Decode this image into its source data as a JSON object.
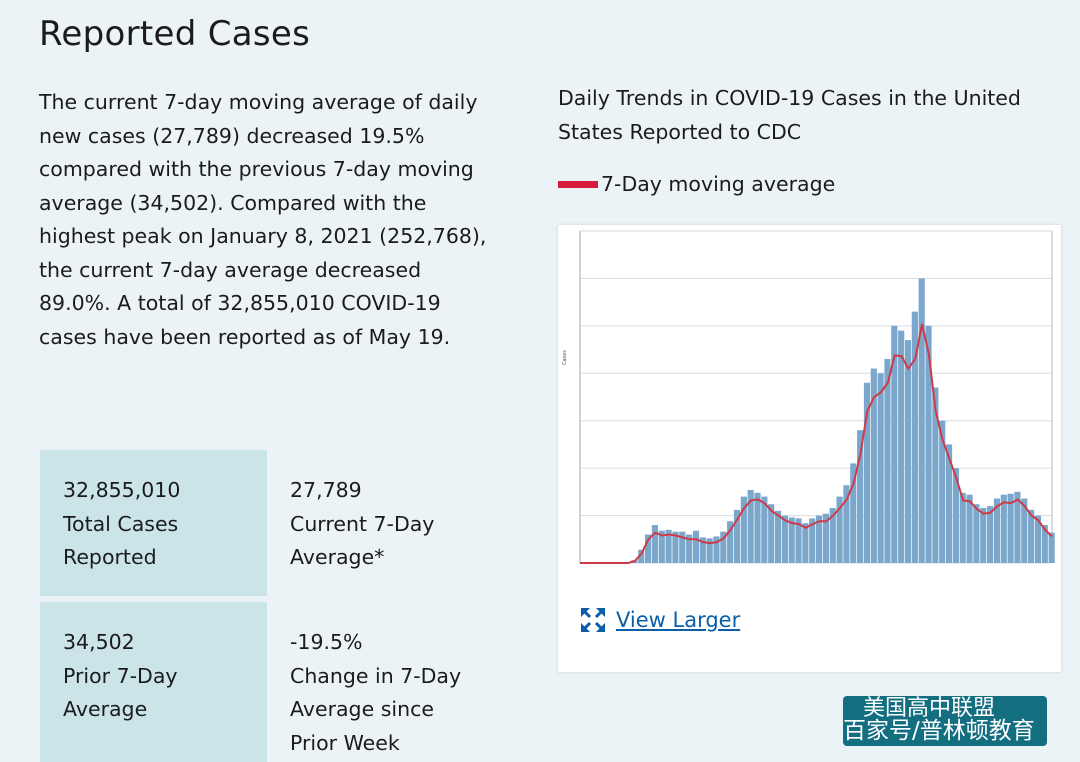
{
  "page_title": "Reported Cases",
  "summary": "The current 7-day moving average of daily new cases (27,789) decreased 19.5% compared with the previous 7-day moving average (34,502). Compared with the highest peak on January 8, 2021 (252,768), the current 7-day average decreased 89.0%. A total of 32,855,010 COVID-19 cases have been reported as of May 19.",
  "stats": [
    {
      "value": "32,855,010",
      "label": "Total Cases Reported"
    },
    {
      "value": "27,789",
      "label": "Current 7-Day Average*"
    },
    {
      "value": "34,502",
      "label": "Prior 7-Day Average"
    },
    {
      "value": "-19.5%",
      "label": "Change in 7-Day Average since Prior Week"
    }
  ],
  "chart_title": "Daily Trends in COVID-19 Cases in the United States Reported to CDC",
  "legend_label": "7-Day moving average",
  "view_larger": "View Larger",
  "watermark": {
    "line1": "美国高中联盟",
    "line2": "百家号/普林顿教育"
  },
  "colors": {
    "bars": "#7ba7cc",
    "average_line": "#d03a48",
    "legend_swatch": "#d81d3c",
    "link": "#0b5ea8"
  },
  "chart_data": {
    "type": "bar",
    "x_range": [
      "2020-01-22",
      "2021-05-19"
    ],
    "ylim": [
      0,
      350000
    ],
    "ylabel": "Cases",
    "grid": true,
    "x_unit": "weeks since start of x range",
    "series": [
      {
        "name": "7-Day moving average",
        "type": "line",
        "values": [
          0,
          0,
          0,
          0,
          0,
          0,
          0,
          0,
          2000,
          10000,
          25000,
          32000,
          29000,
          30000,
          29000,
          27000,
          25000,
          25000,
          22000,
          21000,
          22000,
          26000,
          35000,
          46000,
          58000,
          66000,
          67000,
          63000,
          55000,
          50000,
          45000,
          42000,
          41000,
          37000,
          41000,
          44000,
          44000,
          50000,
          58000,
          67000,
          84000,
          115000,
          160000,
          175000,
          180000,
          190000,
          219000,
          218000,
          205000,
          215000,
          252000,
          220000,
          160000,
          130000,
          110000,
          90000,
          66000,
          65000,
          57000,
          52000,
          53000,
          60000,
          64000,
          63000,
          67000,
          60000,
          50000,
          45000,
          35000,
          28000
        ]
      },
      {
        "type": "bar",
        "values": [
          0,
          0,
          0,
          0,
          0,
          0,
          0,
          0,
          3000,
          14000,
          30000,
          40000,
          34000,
          35000,
          33000,
          33000,
          30000,
          34000,
          27000,
          26000,
          28000,
          33000,
          44000,
          56000,
          70000,
          77000,
          74000,
          70000,
          62000,
          55000,
          50000,
          48000,
          47000,
          42000,
          47000,
          50000,
          52000,
          58000,
          70000,
          82000,
          105000,
          140000,
          190000,
          205000,
          200000,
          215000,
          250000,
          245000,
          235000,
          265000,
          300000,
          250000,
          185000,
          150000,
          125000,
          100000,
          74000,
          72000,
          62000,
          58000,
          60000,
          68000,
          72000,
          73000,
          75000,
          68000,
          56000,
          50000,
          40000,
          32000
        ]
      }
    ]
  }
}
